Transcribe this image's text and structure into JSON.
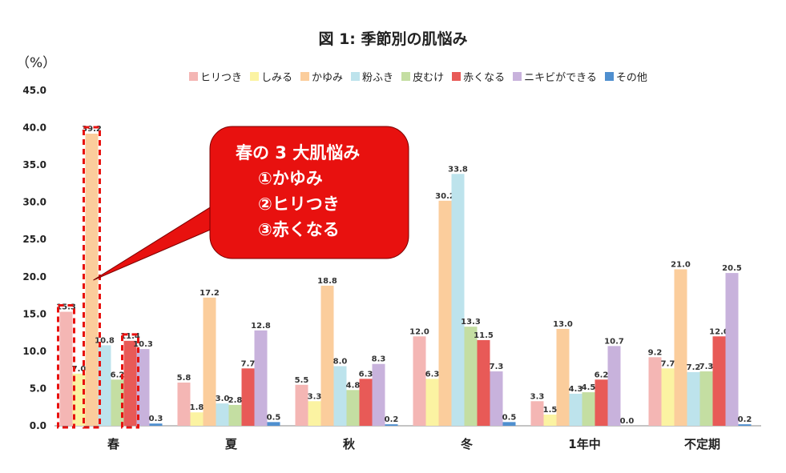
{
  "title": "図 1:  季節別の肌悩み",
  "unit_label": "（%）",
  "chart_data": {
    "type": "bar",
    "categories": [
      "春",
      "夏",
      "秋",
      "冬",
      "1年中",
      "不定期"
    ],
    "series": [
      {
        "name": "ヒリつき",
        "color": "#f4b6b4",
        "values": [
          15.3,
          5.8,
          5.5,
          12.0,
          3.3,
          9.2
        ]
      },
      {
        "name": "しみる",
        "color": "#fbf3a2",
        "values": [
          7.0,
          1.8,
          3.3,
          6.3,
          1.5,
          7.7
        ]
      },
      {
        "name": "かゆみ",
        "color": "#fbcd9c",
        "values": [
          39.2,
          17.2,
          18.8,
          30.2,
          13.0,
          21.0
        ]
      },
      {
        "name": "粉ふき",
        "color": "#bde3ec",
        "values": [
          10.8,
          3.0,
          8.0,
          33.8,
          4.3,
          7.2
        ]
      },
      {
        "name": "皮むけ",
        "color": "#c4dea2",
        "values": [
          6.2,
          2.8,
          4.8,
          13.3,
          4.5,
          7.3
        ]
      },
      {
        "name": "赤くなる",
        "color": "#e85a57",
        "values": [
          11.4,
          7.7,
          6.3,
          11.5,
          6.2,
          12.0
        ]
      },
      {
        "name": "ニキビができる",
        "color": "#c8b2dc",
        "values": [
          10.3,
          12.8,
          8.3,
          7.3,
          10.7,
          20.5
        ]
      },
      {
        "name": "その他",
        "color": "#4f8fcf",
        "values": [
          0.3,
          0.5,
          0.2,
          0.5,
          0.0,
          0.2
        ]
      }
    ],
    "y_ticks": [
      "0.0",
      "5.0",
      "10.0",
      "15.0",
      "20.0",
      "25.0",
      "30.0",
      "35.0",
      "40.0",
      "45.0"
    ],
    "ylim": [
      0,
      45
    ],
    "data_labels": {
      "春": [
        "15.3",
        "7.0",
        "39.2",
        "10.8",
        "6.2",
        "11.4",
        "10.3",
        "0.3"
      ],
      "夏": [
        "5.8",
        "1.8",
        "17.2",
        "3.0",
        "2.8",
        "7.7",
        "12.8",
        "0.5"
      ],
      "秋": [
        "5.5",
        "3.3",
        "18.8",
        "8.0",
        "4.8",
        "6.3",
        "8.3",
        "0.2"
      ],
      "冬": [
        "12.0",
        "6.3",
        "30.2",
        "33.8",
        "13.3",
        "11.5",
        "7.3",
        "0.5"
      ],
      "1年中": [
        "3.3",
        "1.5",
        "13.0",
        "4.3",
        "4.5",
        "6.2",
        "10.7",
        "0.0"
      ],
      "不定期": [
        "9.2",
        "7.7",
        "21.0",
        "7.2",
        "7.3",
        "12.0",
        "20.5",
        "0.2"
      ]
    },
    "highlighted": [
      {
        "category": "春",
        "series": "ヒリつき"
      },
      {
        "category": "春",
        "series": "かゆみ"
      },
      {
        "category": "春",
        "series": "赤くなる"
      }
    ],
    "legend_position": "top",
    "grid": false
  },
  "callout": {
    "lines": [
      "春の 3 大肌悩み",
      "①かゆみ",
      "②ヒリつき",
      "③赤くなる"
    ],
    "fill": "#e8110f"
  }
}
